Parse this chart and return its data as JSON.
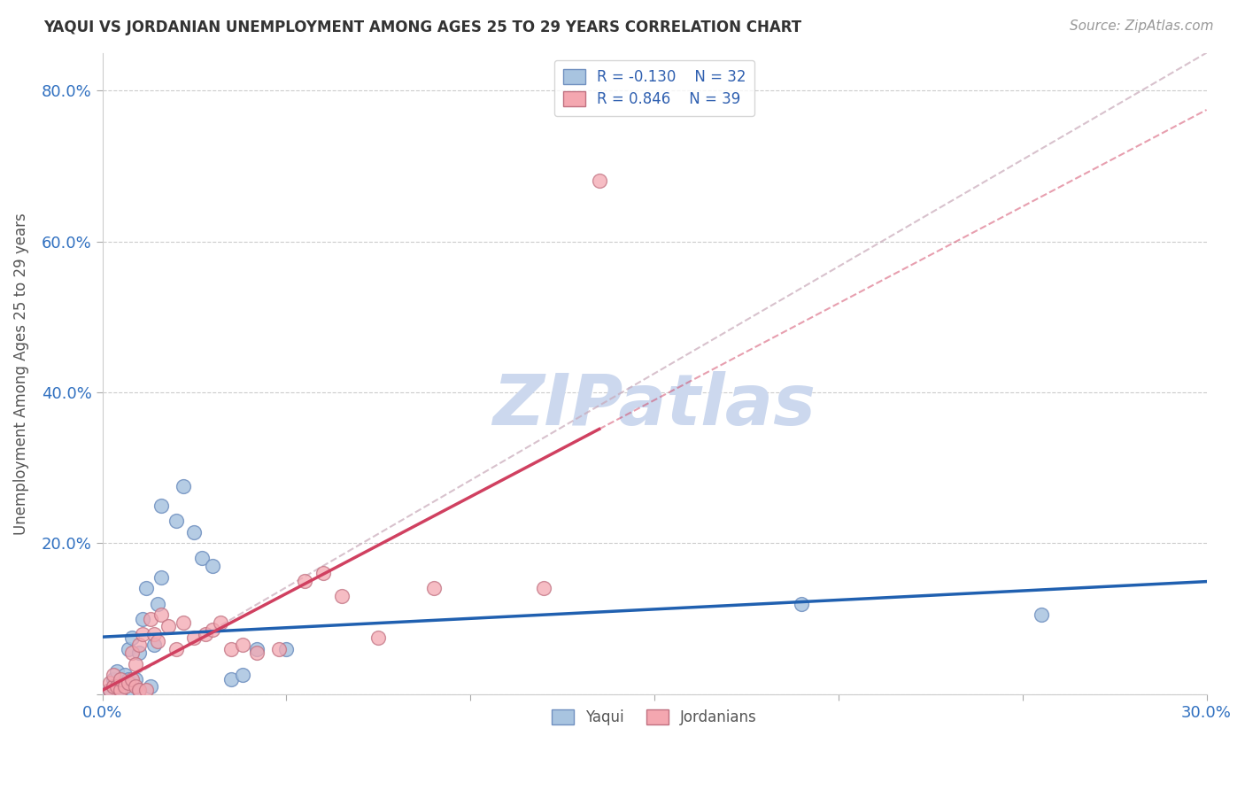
{
  "title": "YAQUI VS JORDANIAN UNEMPLOYMENT AMONG AGES 25 TO 29 YEARS CORRELATION CHART",
  "source": "Source: ZipAtlas.com",
  "ylabel": "Unemployment Among Ages 25 to 29 years",
  "xmin": 0.0,
  "xmax": 0.3,
  "ymin": 0.0,
  "ymax": 0.85,
  "xticks": [
    0.0,
    0.05,
    0.1,
    0.15,
    0.2,
    0.25,
    0.3
  ],
  "yticks": [
    0.0,
    0.2,
    0.4,
    0.6,
    0.8
  ],
  "ytick_labels": [
    "",
    "20.0%",
    "40.0%",
    "60.0%",
    "80.0%"
  ],
  "xtick_labels": [
    "0.0%",
    "",
    "",
    "",
    "",
    "",
    "30.0%"
  ],
  "yaqui_R": -0.13,
  "yaqui_N": 32,
  "jordanian_R": 0.846,
  "jordanian_N": 39,
  "yaqui_color": "#a8c4e0",
  "jordanian_color": "#f4a7b0",
  "yaqui_line_color": "#2060b0",
  "jordanian_line_color": "#d04060",
  "ref_line_color": "#c8a8b8",
  "background_color": "#ffffff",
  "yaqui_x": [
    0.002,
    0.003,
    0.003,
    0.004,
    0.005,
    0.005,
    0.006,
    0.007,
    0.007,
    0.008,
    0.008,
    0.009,
    0.01,
    0.01,
    0.011,
    0.012,
    0.013,
    0.014,
    0.015,
    0.016,
    0.016,
    0.02,
    0.022,
    0.025,
    0.027,
    0.03,
    0.035,
    0.038,
    0.042,
    0.05,
    0.19,
    0.255
  ],
  "yaqui_y": [
    0.005,
    0.01,
    0.02,
    0.03,
    0.005,
    0.015,
    0.025,
    0.02,
    0.06,
    0.005,
    0.075,
    0.02,
    0.005,
    0.055,
    0.1,
    0.14,
    0.01,
    0.065,
    0.12,
    0.25,
    0.155,
    0.23,
    0.275,
    0.215,
    0.18,
    0.17,
    0.02,
    0.025,
    0.06,
    0.06,
    0.12,
    0.105
  ],
  "jordanian_x": [
    0.002,
    0.002,
    0.003,
    0.003,
    0.004,
    0.005,
    0.005,
    0.006,
    0.007,
    0.008,
    0.008,
    0.009,
    0.009,
    0.01,
    0.01,
    0.011,
    0.012,
    0.013,
    0.014,
    0.015,
    0.016,
    0.018,
    0.02,
    0.022,
    0.025,
    0.028,
    0.03,
    0.032,
    0.035,
    0.038,
    0.042,
    0.048,
    0.055,
    0.06,
    0.065,
    0.075,
    0.09,
    0.12,
    0.135
  ],
  "jordanian_y": [
    0.005,
    0.015,
    0.01,
    0.025,
    0.01,
    0.005,
    0.02,
    0.01,
    0.015,
    0.02,
    0.055,
    0.01,
    0.04,
    0.005,
    0.065,
    0.08,
    0.005,
    0.1,
    0.08,
    0.07,
    0.105,
    0.09,
    0.06,
    0.095,
    0.075,
    0.08,
    0.085,
    0.095,
    0.06,
    0.065,
    0.055,
    0.06,
    0.15,
    0.16,
    0.13,
    0.075,
    0.14,
    0.14,
    0.68
  ]
}
